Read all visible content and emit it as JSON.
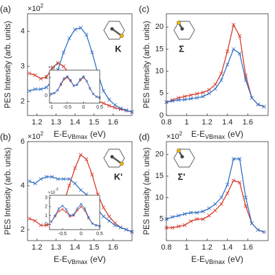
{
  "chart_data": [
    {
      "type": "line",
      "panel_label": "(a)",
      "annotation": "K",
      "ylabel": "PES Intensity (arb. units)",
      "xlabel": "E-E",
      "xlabel_sub": "VBmax",
      "xlabel_unit": "(eV)",
      "y_scale": "×10",
      "y_scale_exp": "2",
      "xlim": [
        1.15,
        1.7
      ],
      "xticks": [
        1.2,
        1.3,
        1.4,
        1.5,
        1.6
      ],
      "ylim": [
        1.6,
        4.5
      ],
      "yticks": [
        2,
        3,
        4
      ],
      "x": [
        1.16,
        1.19,
        1.22,
        1.25,
        1.28,
        1.31,
        1.34,
        1.37,
        1.4,
        1.43,
        1.46,
        1.49,
        1.52,
        1.55,
        1.58,
        1.61,
        1.64,
        1.67,
        1.7
      ],
      "series": [
        {
          "color": "#d63a2a",
          "values": [
            2.8,
            2.75,
            2.65,
            2.7,
            2.95,
            3.1,
            3.0,
            2.8,
            2.6,
            2.4,
            2.25,
            2.1,
            2.0,
            1.95,
            1.88,
            1.82,
            1.78,
            1.74,
            1.7
          ]
        },
        {
          "color": "#2f6fc4",
          "values": [
            2.3,
            2.35,
            2.35,
            2.4,
            2.6,
            2.9,
            3.4,
            3.8,
            4.05,
            4.1,
            3.9,
            3.4,
            2.8,
            2.3,
            2.05,
            1.9,
            1.8,
            1.75,
            1.7
          ]
        }
      ],
      "inset": {
        "type": "line",
        "y_scale": "×10",
        "y_scale_exp": "-3",
        "xlim": [
          -1.05,
          0.5
        ],
        "xticks": [
          -1,
          -0.5,
          0,
          0.5
        ],
        "ylim": [
          -0.4,
          1.4
        ],
        "yticks": [
          0,
          1
        ],
        "x": [
          -1.0,
          -0.9,
          -0.8,
          -0.7,
          -0.6,
          -0.5,
          -0.4,
          -0.3,
          -0.2,
          -0.1,
          0.0,
          0.1,
          0.2,
          0.3,
          0.4,
          0.5
        ],
        "series": [
          {
            "color": "#d63a2a",
            "values": [
              0.1,
              0.15,
              0.3,
              0.6,
              0.9,
              1.0,
              0.8,
              0.55,
              0.6,
              0.85,
              1.0,
              0.8,
              0.4,
              0.1,
              -0.05,
              -0.1
            ]
          },
          {
            "color": "#2f6fc4",
            "values": [
              0.1,
              0.15,
              0.3,
              0.65,
              0.95,
              1.05,
              0.85,
              0.55,
              0.6,
              0.9,
              1.05,
              0.8,
              0.4,
              0.1,
              -0.05,
              -0.1
            ]
          }
        ]
      }
    },
    {
      "type": "line",
      "panel_label": "(b)",
      "annotation": "K'",
      "ylabel": "PES Intensity (arb. units)",
      "xlabel": "E-E",
      "xlabel_sub": "VBmax",
      "xlabel_unit": "(eV)",
      "y_scale": "×10",
      "y_scale_exp": "2",
      "xlim": [
        1.15,
        1.7
      ],
      "xticks": [
        1.2,
        1.3,
        1.4,
        1.5,
        1.6
      ],
      "ylim": [
        1.5,
        6
      ],
      "yticks": [
        2,
        4,
        6
      ],
      "x": [
        1.16,
        1.19,
        1.22,
        1.25,
        1.28,
        1.31,
        1.34,
        1.37,
        1.4,
        1.43,
        1.46,
        1.49,
        1.52,
        1.55,
        1.58,
        1.61,
        1.64,
        1.67,
        1.7
      ],
      "series": [
        {
          "color": "#d63a2a",
          "values": [
            2.5,
            2.4,
            2.2,
            2.2,
            2.3,
            2.6,
            3.2,
            4.0,
            4.8,
            5.4,
            5.2,
            4.5,
            3.6,
            3.0,
            2.6,
            2.3,
            2.1,
            2.0,
            1.9
          ]
        },
        {
          "color": "#2f6fc4",
          "values": [
            4.2,
            4.1,
            4.3,
            4.4,
            4.4,
            4.3,
            4.3,
            4.3,
            4.1,
            3.8,
            3.6,
            3.3,
            2.9,
            2.6,
            2.4,
            2.2,
            2.1,
            2.0,
            1.9
          ]
        }
      ],
      "inset": {
        "type": "line",
        "y_scale": "×10",
        "y_scale_exp": "-3",
        "xlim": [
          -0.85,
          0.5
        ],
        "xticks": [
          -0.5,
          0,
          0.5
        ],
        "ylim": [
          -0.6,
          3.3
        ],
        "yticks": [
          0,
          1,
          2,
          3
        ],
        "x": [
          -0.8,
          -0.7,
          -0.6,
          -0.5,
          -0.4,
          -0.3,
          -0.2,
          -0.1,
          0.0,
          0.1,
          0.2,
          0.3,
          0.4,
          0.5
        ],
        "series": [
          {
            "color": "#d63a2a",
            "values": [
              0.3,
              0.9,
              1.5,
              1.7,
              1.4,
              0.9,
              1.0,
              1.6,
              2.0,
              1.6,
              0.7,
              0.1,
              -0.1,
              -0.2
            ]
          },
          {
            "color": "#2f6fc4",
            "values": [
              0.3,
              1.0,
              1.8,
              2.1,
              1.7,
              1.0,
              1.1,
              1.8,
              2.3,
              1.8,
              0.8,
              0.1,
              -0.1,
              -0.2
            ]
          }
        ]
      }
    },
    {
      "type": "line",
      "panel_label": "(c)",
      "annotation": "Σ",
      "ylabel": "PES Intensity (arb. units)",
      "xlabel": "E-E",
      "xlabel_sub": "VBmax",
      "xlabel_unit": "(eV)",
      "xlim": [
        0.8,
        1.8
      ],
      "xticks": [
        0.8,
        1,
        1.2,
        1.4,
        1.6
      ],
      "ylim": [
        0,
        23
      ],
      "yticks": [
        0,
        5,
        10,
        15,
        20
      ],
      "x": [
        0.8,
        0.86,
        0.92,
        0.98,
        1.04,
        1.1,
        1.16,
        1.22,
        1.28,
        1.34,
        1.4,
        1.46,
        1.52,
        1.58,
        1.64,
        1.7,
        1.76
      ],
      "series": [
        {
          "color": "#d63a2a",
          "values": [
            3,
            3.5,
            4,
            4.3,
            4.6,
            4.9,
            5.2,
            5.8,
            7,
            9.5,
            14.5,
            20.5,
            18,
            9,
            4,
            2.5,
            2
          ]
        },
        {
          "color": "#2f6fc4",
          "values": [
            3,
            3.3,
            3.5,
            3.6,
            3.8,
            4,
            4.3,
            5,
            6,
            8,
            11.5,
            15,
            14,
            8,
            4,
            2.5,
            2
          ]
        }
      ]
    },
    {
      "type": "line",
      "panel_label": "(d)",
      "annotation": "Σ'",
      "ylabel": "PES Intensity (arb. units)",
      "xlabel": "E-E",
      "xlabel_sub": "VBmax",
      "xlabel_unit": "(eV)",
      "y_scale": "×10",
      "y_scale_exp": "2",
      "xlim": [
        0.8,
        1.8
      ],
      "xticks": [
        0.8,
        1,
        1.2,
        1.4,
        1.6
      ],
      "ylim": [
        0,
        23
      ],
      "yticks": [
        5,
        10,
        15,
        20
      ],
      "x": [
        0.8,
        0.86,
        0.92,
        0.98,
        1.04,
        1.1,
        1.16,
        1.22,
        1.28,
        1.34,
        1.4,
        1.46,
        1.52,
        1.58,
        1.64,
        1.7,
        1.76
      ],
      "series": [
        {
          "color": "#d63a2a",
          "values": [
            3,
            3,
            3.3,
            3.6,
            4.5,
            5,
            5,
            5.8,
            7,
            8.5,
            11,
            14,
            13.5,
            8,
            4,
            2.5,
            2
          ]
        },
        {
          "color": "#2f6fc4",
          "values": [
            5,
            5.5,
            5.8,
            6.2,
            6.5,
            6.5,
            6.8,
            7.5,
            8.5,
            10,
            13,
            19,
            19,
            10,
            4,
            2.5,
            2
          ]
        }
      ]
    }
  ]
}
